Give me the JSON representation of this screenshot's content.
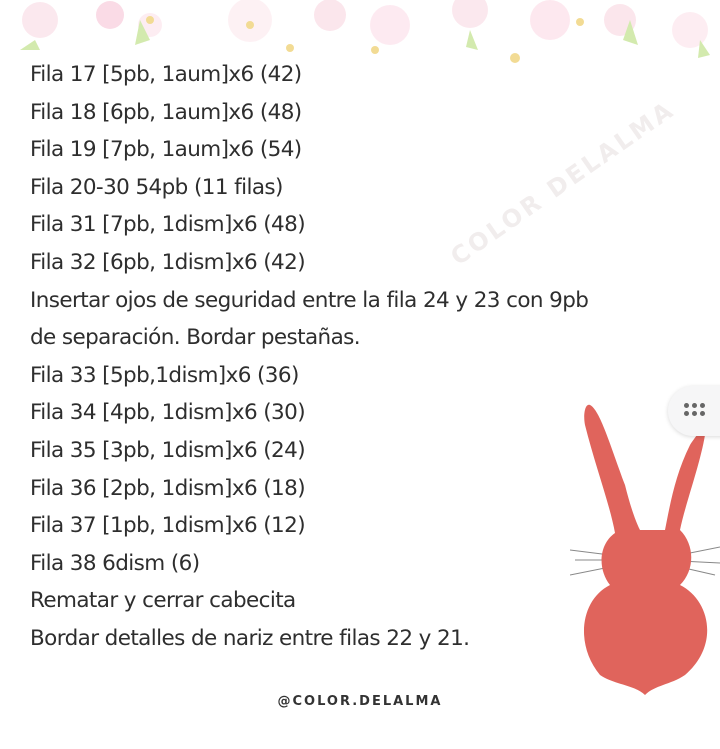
{
  "lines": [
    "Fila 17 [5pb, 1aum]x6 (42)",
    "Fila 18 [6pb, 1aum]x6 (48)",
    "Fila 19 [7pb, 1aum]x6 (54)",
    "Fila 20-30 54pb (11 filas)",
    "Fila 31 [7pb, 1dism]x6 (48)",
    "Fila 32 [6pb, 1dism]x6 (42)",
    "Insertar ojos de seguridad entre la fila 24 y 23 con 9pb",
    "de separación. Bordar pestañas.",
    "Fila 33 [5pb,1dism]x6 (36)",
    "Fila 34 [4pb, 1dism]x6 (30)",
    "Fila 35 [3pb, 1dism]x6 (24)",
    "Fila 36 [2pb, 1dism]x6 (18)",
    "Fila 37 [1pb, 1dism]x6 (12)",
    "Fila 38 6dism (6)",
    "Rematar y cerrar cabecita",
    "Bordar detalles de nariz entre filas 22 y 21."
  ],
  "watermark": "COLOR DELALMA",
  "footer": "@COLOR.DELALMA",
  "colors": {
    "bunny": "#e0645c",
    "text": "#2e2e2e"
  },
  "icons": {
    "menu": "grid-dots-icon",
    "bunny": "bunny-silhouette"
  }
}
